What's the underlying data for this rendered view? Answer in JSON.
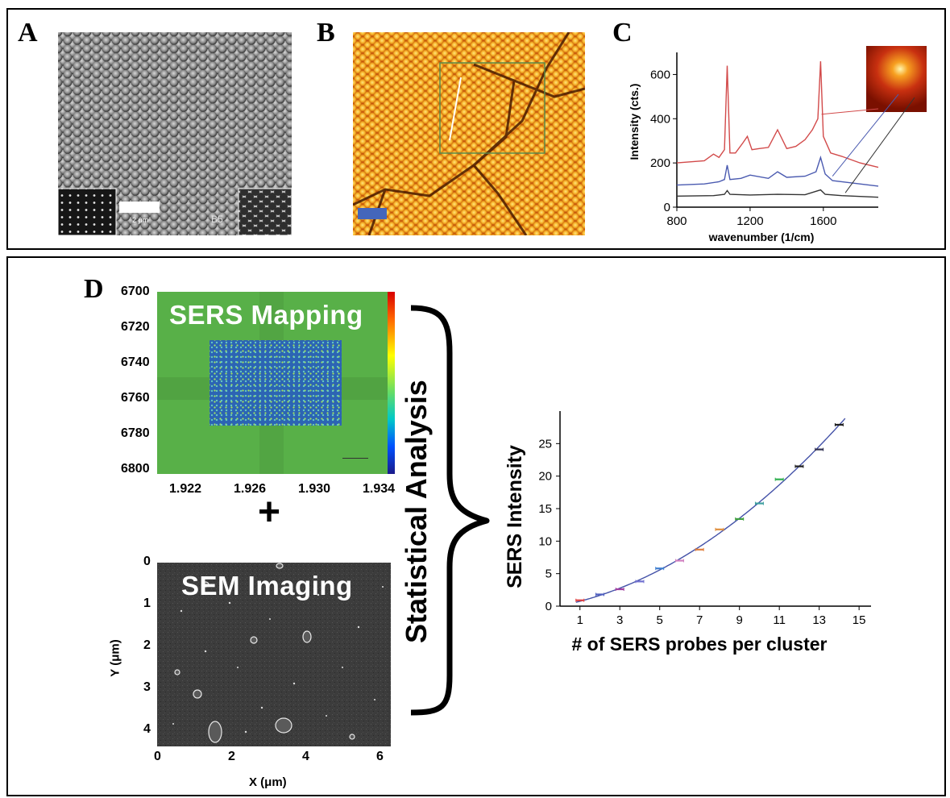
{
  "panels": {
    "a": {
      "label": "A",
      "scale_text": "2 μm",
      "code_text": "B5"
    },
    "b": {
      "label": "B"
    },
    "c": {
      "label": "C"
    },
    "d": {
      "label": "D",
      "plus": "+",
      "brace_label": "Statistical Analysis"
    }
  },
  "sers_map": {
    "title": "SERS Mapping",
    "y_ticks": [
      "6700",
      "6720",
      "6740",
      "6760",
      "6780",
      "6800"
    ],
    "x_ticks": [
      "1.922",
      "1.926",
      "1.930",
      "1.934"
    ],
    "colorbar": [
      "#ff0000",
      "#ffff00",
      "#00c8c8",
      "#0000ff"
    ],
    "map_bg": "#58b048",
    "map_roi": "#2f6fb8"
  },
  "sem_image": {
    "title": "SEM Imaging",
    "y_ticks": [
      "0",
      "1",
      "2",
      "3",
      "4"
    ],
    "x_ticks": [
      "0",
      "2",
      "4",
      "6"
    ],
    "xlabel": "X (μm)",
    "ylabel": "Y (μm)"
  },
  "chart_data": [
    {
      "type": "line",
      "xlabel": "wavenumber (1/cm)",
      "ylabel": "Intensity (cts.)",
      "xlim": [
        800,
        1900
      ],
      "ylim": [
        0,
        700
      ],
      "x_ticks": [
        800,
        1200,
        1600
      ],
      "y_ticks": [
        0,
        200,
        400,
        600
      ],
      "series": [
        {
          "color": "#d24a4a",
          "x": [
            800,
            950,
            1000,
            1030,
            1060,
            1075,
            1090,
            1120,
            1160,
            1185,
            1210,
            1250,
            1300,
            1350,
            1400,
            1450,
            1500,
            1540,
            1570,
            1585,
            1600,
            1640,
            1700,
            1800,
            1900
          ],
          "y": [
            200,
            210,
            240,
            225,
            260,
            640,
            245,
            245,
            290,
            320,
            260,
            265,
            270,
            350,
            265,
            275,
            305,
            350,
            400,
            660,
            320,
            245,
            230,
            200,
            180
          ]
        },
        {
          "color": "#4a5ab0",
          "x": [
            800,
            950,
            1030,
            1060,
            1075,
            1090,
            1150,
            1200,
            1300,
            1350,
            1400,
            1500,
            1560,
            1585,
            1610,
            1650,
            1750,
            1900
          ],
          "y": [
            100,
            105,
            115,
            125,
            190,
            125,
            130,
            145,
            130,
            160,
            135,
            140,
            160,
            225,
            150,
            120,
            110,
            95
          ]
        },
        {
          "color": "#333333",
          "x": [
            800,
            1000,
            1060,
            1075,
            1090,
            1200,
            1350,
            1500,
            1585,
            1610,
            1700,
            1900
          ],
          "y": [
            50,
            52,
            58,
            75,
            58,
            55,
            58,
            56,
            78,
            58,
            52,
            45
          ]
        }
      ]
    },
    {
      "type": "scatter",
      "xlabel": "# of SERS probes per cluster",
      "ylabel": "SERS Intensity",
      "xlim": [
        0,
        15.6
      ],
      "ylim": [
        0,
        30
      ],
      "x_ticks": [
        1,
        3,
        5,
        7,
        9,
        11,
        13,
        15
      ],
      "y_ticks": [
        0,
        5,
        10,
        15,
        20,
        25
      ],
      "fit_color": "#4452a8",
      "x": [
        1,
        2,
        3,
        4,
        5,
        6,
        7,
        8,
        9,
        10,
        11,
        12,
        13,
        14
      ],
      "y": [
        0.9,
        1.8,
        2.6,
        3.8,
        5.8,
        7.0,
        8.7,
        11.8,
        13.4,
        15.8,
        19.5,
        21.5,
        24.1,
        27.9
      ],
      "colors": [
        "#e04040",
        "#5060c0",
        "#a040a0",
        "#7070d0",
        "#4080d0",
        "#d080c0",
        "#e08040",
        "#e09040",
        "#40a040",
        "#40a0a0",
        "#30b050",
        "#202020",
        "#303050",
        "#202020"
      ]
    }
  ]
}
